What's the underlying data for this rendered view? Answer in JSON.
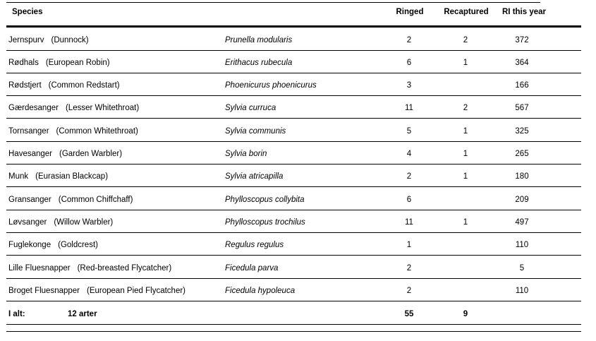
{
  "headers": {
    "species": "Species",
    "ringed": "Ringed",
    "recaptured": "Recaptured",
    "ri": "RI this year"
  },
  "rows": [
    {
      "danish": "Jernspurv",
      "english": "(Dunnock)",
      "latin": "Prunella modularis",
      "ringed": "2",
      "recaptured": "2",
      "ri": "372"
    },
    {
      "danish": "Rødhals",
      "english": "(European Robin)",
      "latin": "Erithacus rubecula",
      "ringed": "6",
      "recaptured": "1",
      "ri": "364"
    },
    {
      "danish": "Rødstjert",
      "english": "(Common Redstart)",
      "latin": "Phoenicurus phoenicurus",
      "ringed": "3",
      "recaptured": "",
      "ri": "166"
    },
    {
      "danish": "Gærdesanger",
      "english": "(Lesser Whitethroat)",
      "latin": "Sylvia curruca",
      "ringed": "11",
      "recaptured": "2",
      "ri": "567"
    },
    {
      "danish": "Tornsanger",
      "english": "(Common Whitethroat)",
      "latin": "Sylvia communis",
      "ringed": "5",
      "recaptured": "1",
      "ri": "325"
    },
    {
      "danish": "Havesanger",
      "english": "(Garden Warbler)",
      "latin": "Sylvia borin",
      "ringed": "4",
      "recaptured": "1",
      "ri": "265"
    },
    {
      "danish": "Munk",
      "english": "(Eurasian Blackcap)",
      "latin": "Sylvia atricapilla",
      "ringed": "2",
      "recaptured": "1",
      "ri": "180"
    },
    {
      "danish": "Gransanger",
      "english": "(Common Chiffchaff)",
      "latin": "Phylloscopus collybita",
      "ringed": "6",
      "recaptured": "",
      "ri": "209"
    },
    {
      "danish": "Løvsanger",
      "english": "(Willow Warbler)",
      "latin": "Phylloscopus trochilus",
      "ringed": "11",
      "recaptured": "1",
      "ri": "497"
    },
    {
      "danish": "Fuglekonge",
      "english": "(Goldcrest)",
      "latin": "Regulus regulus",
      "ringed": "1",
      "recaptured": "",
      "ri": "110"
    },
    {
      "danish": "Lille Fluesnapper",
      "english": "(Red-breasted Flycatcher)",
      "latin": "Ficedula parva",
      "ringed": "2",
      "recaptured": "",
      "ri": "5"
    },
    {
      "danish": "Broget Fluesnapper",
      "english": "(European Pied Flycatcher)",
      "latin": "Ficedula hypoleuca",
      "ringed": "2",
      "recaptured": "",
      "ri": "110"
    }
  ],
  "total": {
    "label": "I alt:",
    "species_count": "12 arter",
    "ringed": "55",
    "recaptured": "9"
  }
}
